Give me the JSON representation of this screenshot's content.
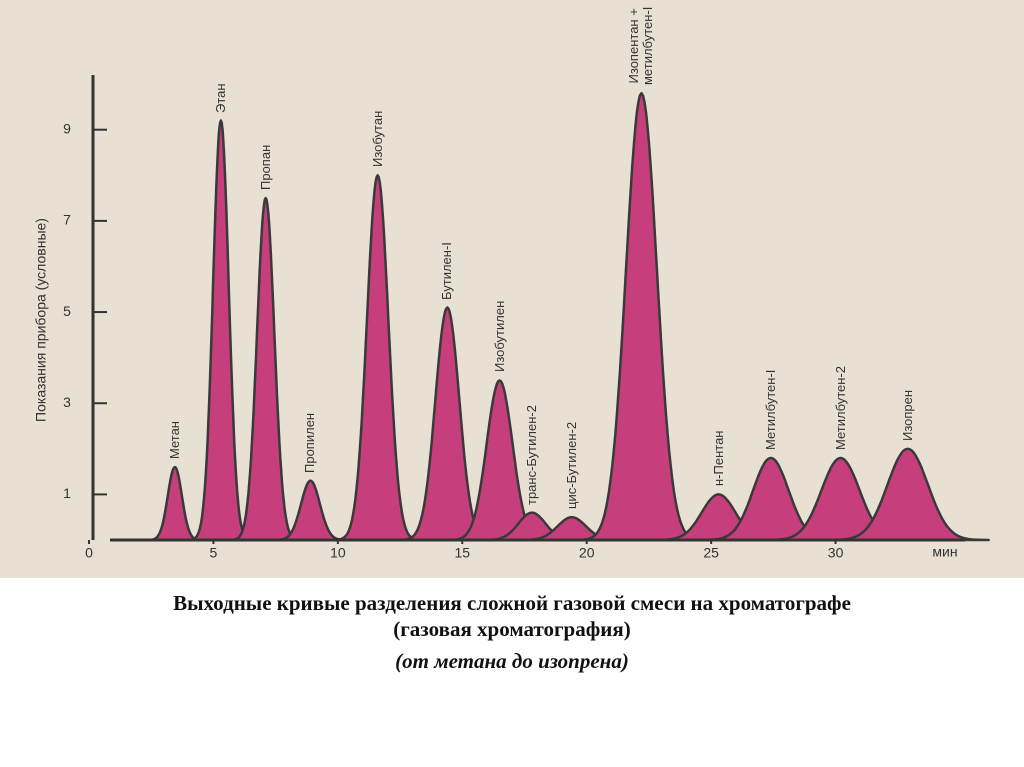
{
  "chart_data": {
    "type": "chromatogram",
    "title": "Выходные кривые разделения сложной газовой смеси на хроматографе",
    "subtitle": "(газовая хроматография)",
    "note": "(от метана до изопрена)",
    "y_label": "Показания прибора (условные)",
    "x_label": "мин",
    "labels": [
      "Метан",
      "Этан",
      "Пропан",
      "Пропилен",
      "Изобутан",
      "Бутилен-I",
      "Изобутилен",
      "транс-Бутилен-2",
      "цис-Бутилен-2",
      "Изопентан +\nметилбутен-I",
      "н-Пентан",
      "Метилбутен-I",
      "Метилбутен-2",
      "Изопрен"
    ],
    "x": [
      3.45,
      5.3,
      7.1,
      8.9,
      11.6,
      14.4,
      16.5,
      17.8,
      19.4,
      22.2,
      25.3,
      27.4,
      30.2,
      32.9
    ],
    "values": [
      1.6,
      9.2,
      7.5,
      1.3,
      8.0,
      5.1,
      3.5,
      0.6,
      0.5,
      9.8,
      1.0,
      1.8,
      1.8,
      2.0
    ],
    "color": "#c63f7c",
    "xlim": [
      0,
      35
    ],
    "xticks": [
      0,
      5,
      10,
      15,
      20,
      25,
      30
    ],
    "ylim": [
      0,
      10.2
    ],
    "yticks": [
      1,
      3,
      5,
      7,
      9
    ]
  }
}
